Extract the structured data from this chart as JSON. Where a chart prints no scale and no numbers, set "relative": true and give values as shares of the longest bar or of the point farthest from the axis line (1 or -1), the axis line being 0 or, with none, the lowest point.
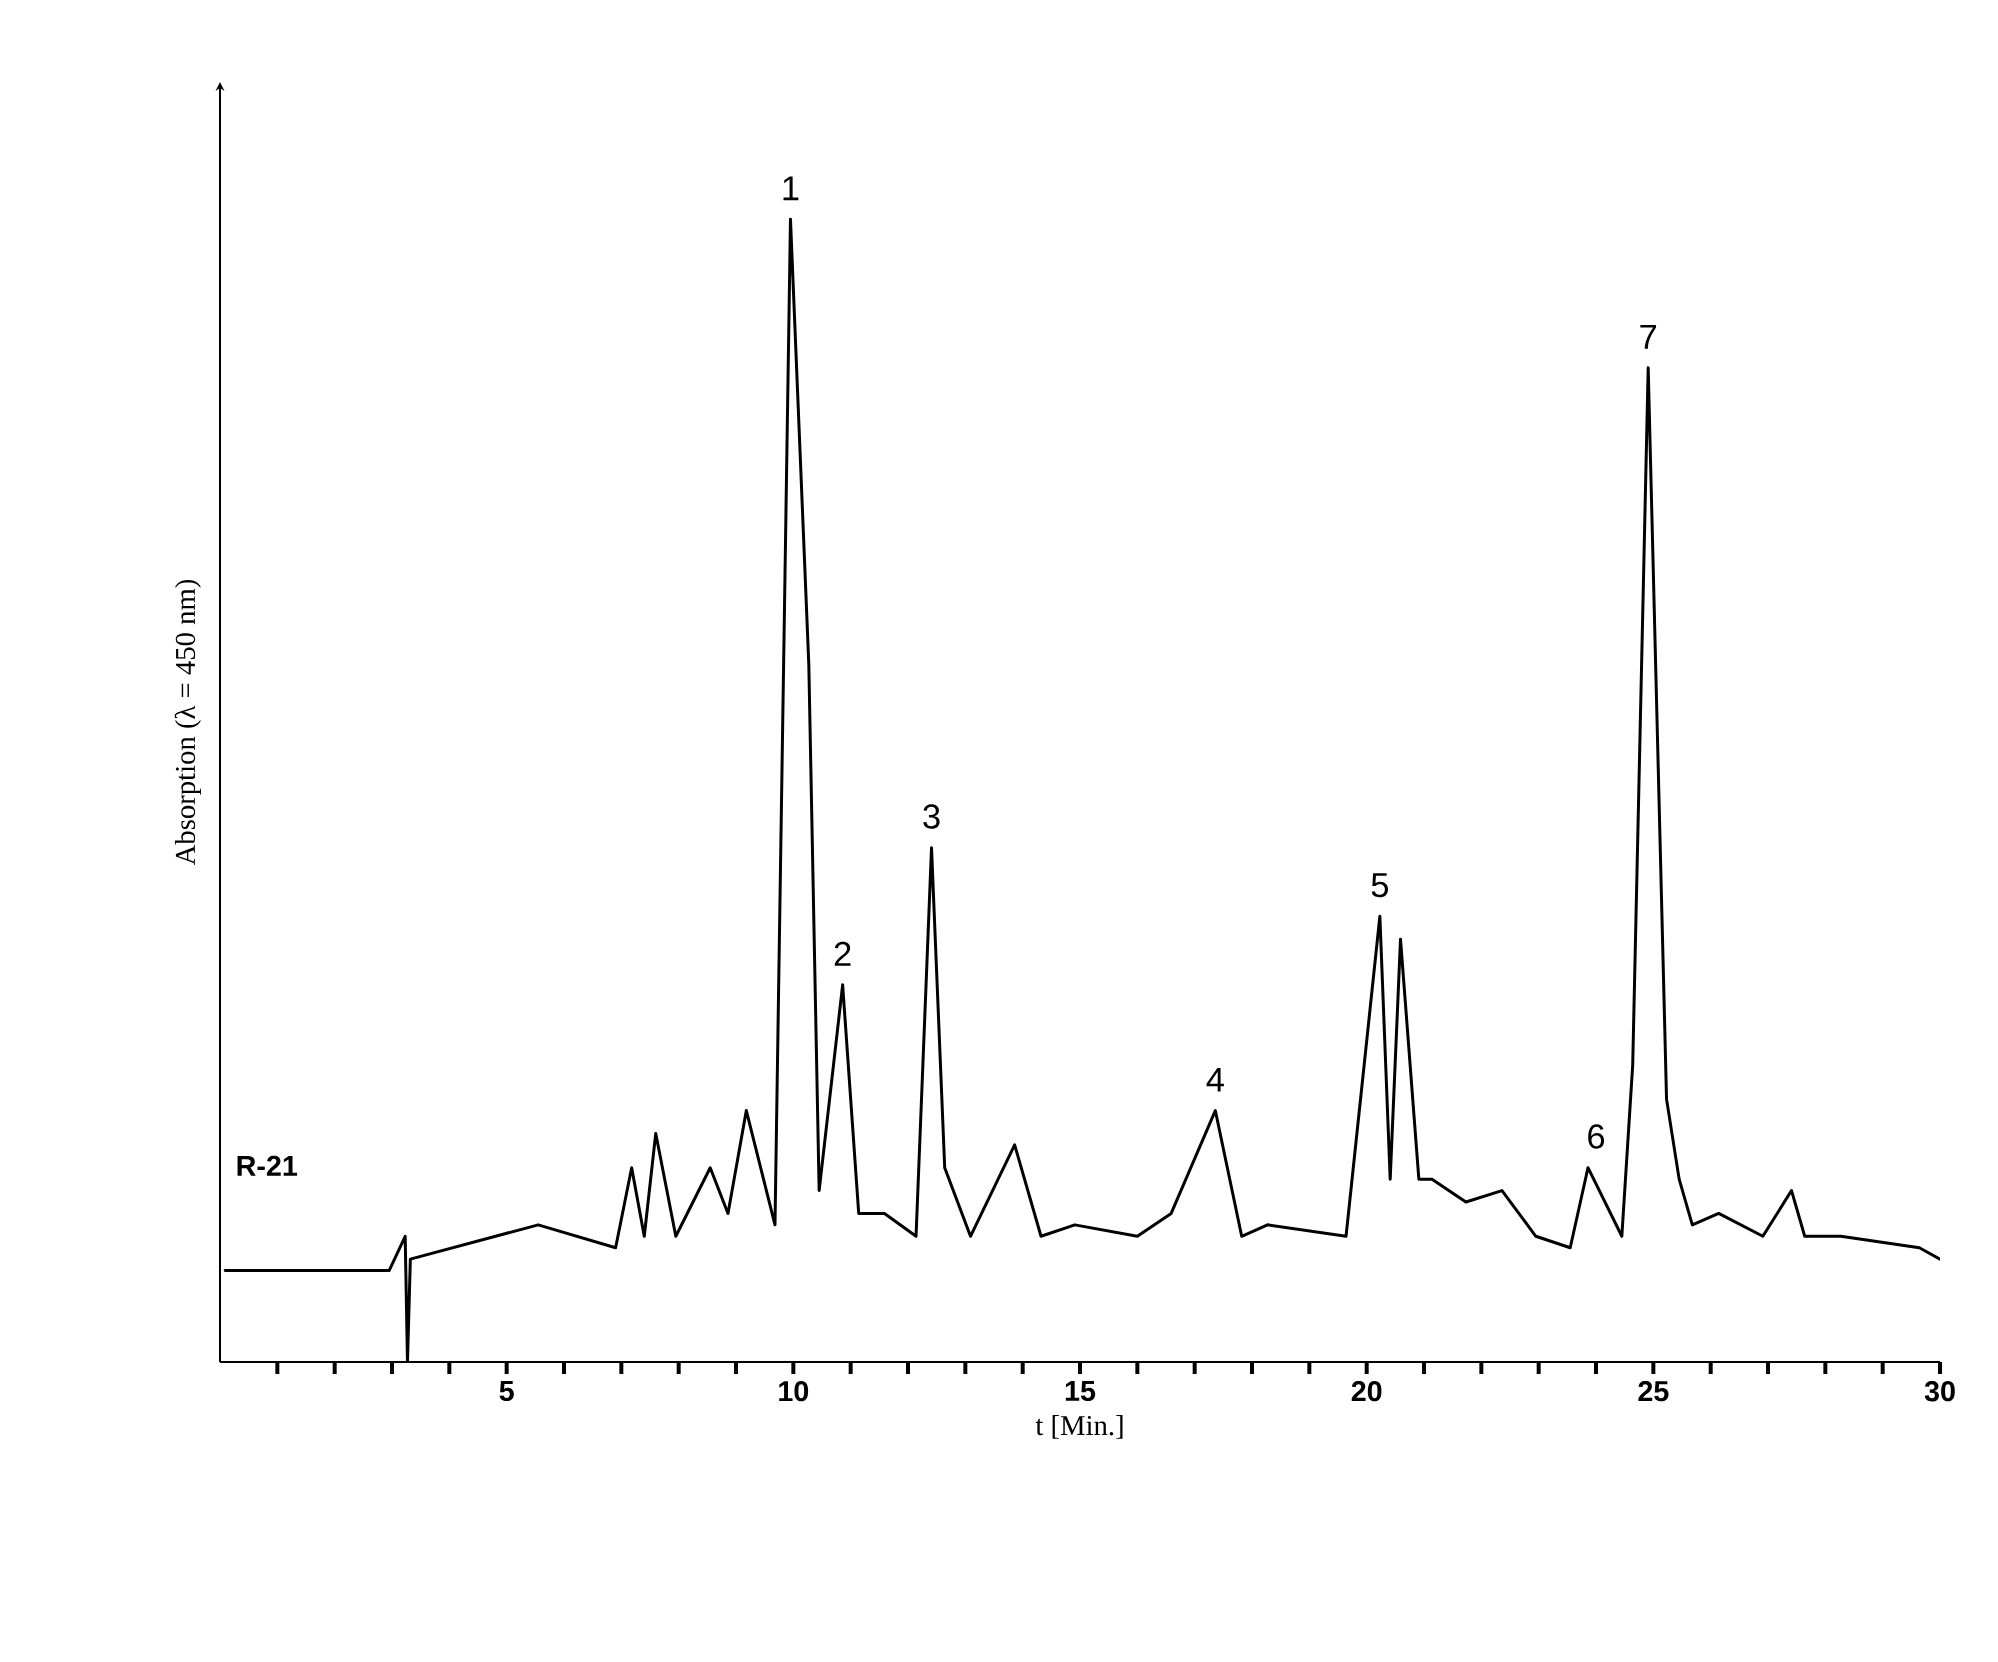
{
  "chart_data": {
    "type": "line",
    "relative": true,
    "xlabel": "t [Min.]",
    "ylabel": "Absorption (λ = 450 nm)",
    "xlim": [
      0,
      30
    ],
    "xticks": [
      {
        "value": 1,
        "label": null
      },
      {
        "value": 2,
        "label": null
      },
      {
        "value": 3,
        "label": null
      },
      {
        "value": 4,
        "label": null
      },
      5,
      {
        "value": 6,
        "label": null
      },
      {
        "value": 7,
        "label": null
      },
      {
        "value": 8,
        "label": null
      },
      {
        "value": 9,
        "label": null
      },
      10,
      {
        "value": 11,
        "label": null
      },
      {
        "value": 12,
        "label": null
      },
      {
        "value": 13,
        "label": null
      },
      {
        "value": 14,
        "label": null
      },
      15,
      {
        "value": 16,
        "label": null
      },
      {
        "value": 17,
        "label": null
      },
      {
        "value": 18,
        "label": null
      },
      {
        "value": 19,
        "label": null
      },
      20,
      {
        "value": 21,
        "label": null
      },
      {
        "value": 22,
        "label": null
      },
      {
        "value": 23,
        "label": null
      },
      {
        "value": 24,
        "label": null
      },
      25,
      {
        "value": 26,
        "label": null
      },
      {
        "value": 27,
        "label": null
      },
      {
        "value": 28,
        "label": null
      },
      {
        "value": 29,
        "label": null
      },
      30
    ],
    "grid": false,
    "marker": "none",
    "line_style": "solid",
    "series": [
      {
        "color": "#000000",
        "x": [
          0.09,
          2.95,
          3.23,
          3.27,
          3.32,
          5.55,
          6.9,
          7.18,
          7.4,
          7.6,
          7.95,
          8.55,
          8.86,
          9.18,
          9.68,
          9.95,
          10.27,
          10.45,
          10.86,
          11.14,
          11.59,
          12.14,
          12.41,
          12.64,
          13.09,
          13.86,
          14.32,
          14.91,
          16.0,
          16.59,
          17.36,
          17.82,
          18.27,
          19.64,
          20.23,
          20.41,
          20.59,
          20.91,
          21.14,
          21.73,
          22.36,
          22.95,
          23.55,
          23.86,
          24.45,
          24.64,
          24.91,
          25.23,
          25.45,
          25.68,
          26.14,
          26.91,
          27.41,
          27.64,
          28.27,
          29.64,
          30.0
        ],
        "values": [
          0.08,
          0.08,
          0.11,
          0.0,
          0.09,
          0.12,
          0.1,
          0.17,
          0.11,
          0.2,
          0.11,
          0.17,
          0.13,
          0.22,
          0.12,
          1.0,
          0.61,
          0.15,
          0.33,
          0.13,
          0.13,
          0.11,
          0.45,
          0.17,
          0.11,
          0.19,
          0.11,
          0.12,
          0.11,
          0.13,
          0.22,
          0.11,
          0.12,
          0.11,
          0.39,
          0.16,
          0.37,
          0.16,
          0.16,
          0.14,
          0.15,
          0.11,
          0.1,
          0.17,
          0.11,
          0.26,
          0.87,
          0.23,
          0.16,
          0.12,
          0.13,
          0.11,
          0.15,
          0.11,
          0.11,
          0.1,
          0.09
        ]
      }
    ],
    "annotations": [
      {
        "text": "1",
        "x": 9.95,
        "y": 1.0
      },
      {
        "text": "2",
        "x": 10.86,
        "y": 0.33
      },
      {
        "text": "3",
        "x": 12.41,
        "y": 0.45
      },
      {
        "text": "4",
        "x": 17.36,
        "y": 0.22
      },
      {
        "text": "5",
        "x": 20.23,
        "y": 0.39
      },
      {
        "text": "6",
        "x": 24.0,
        "y": 0.17
      },
      {
        "text": "7",
        "x": 24.91,
        "y": 0.87
      },
      "R-21"
    ]
  }
}
